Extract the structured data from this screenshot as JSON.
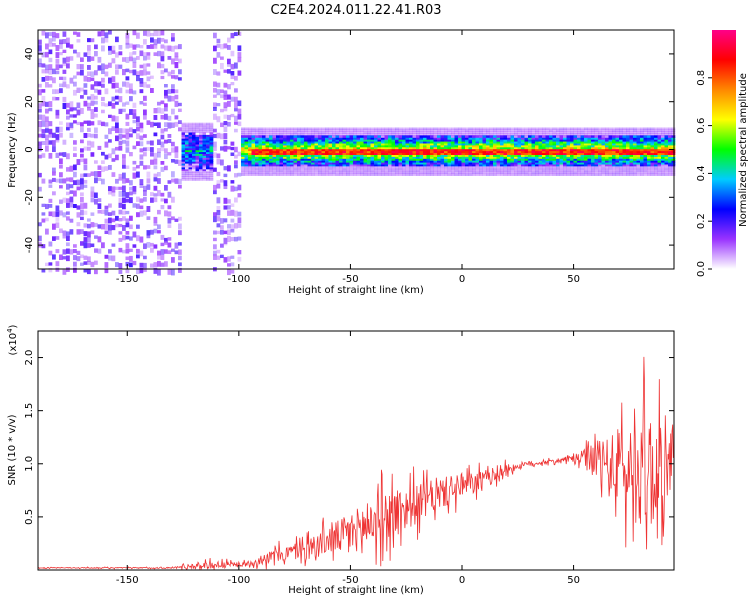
{
  "figure": {
    "title": "C2E4.2024.011.22.41.R03"
  },
  "chart_data": [
    {
      "type": "heatmap",
      "title": "C2E4.2024.011.22.41.R03",
      "xlabel": "Height of straight line (km)",
      "ylabel": "Frequency (Hz)",
      "xlim": [
        -190,
        95
      ],
      "ylim": [
        -50,
        50
      ],
      "x_ticks": [
        "-150",
        "-100",
        "-50",
        "0",
        "50"
      ],
      "x_tick_values": [
        -150,
        -100,
        -50,
        0,
        50
      ],
      "y_ticks": [
        "-40",
        "-20",
        "0",
        "20",
        "40"
      ],
      "y_tick_values": [
        -40,
        -20,
        0,
        20,
        40
      ],
      "colorbar": {
        "label": "Normalized spectral amplitude",
        "range": [
          0,
          1
        ],
        "ticks": [
          "0.0",
          "0.2",
          "0.4",
          "0.6",
          "0.8"
        ],
        "tick_values": [
          0.0,
          0.2,
          0.4,
          0.6,
          0.8
        ],
        "colormap": [
          "#ffffff",
          "#9933ff",
          "#0000ff",
          "#00ccff",
          "#00ff00",
          "#ffff00",
          "#ff8800",
          "#ff0000",
          "#ff0088"
        ]
      },
      "regions": [
        {
          "x_range": [
            -190,
            -127
          ],
          "description_level": 0.15,
          "freq_range": [
            -50,
            50
          ]
        },
        {
          "x_range": [
            -127,
            -113
          ],
          "description_level": 0.35,
          "freq_range": [
            -8,
            8
          ]
        },
        {
          "x_range": [
            -113,
            -100
          ],
          "description_level": 0.15,
          "freq_range": [
            -50,
            50
          ]
        },
        {
          "x_range": [
            -100,
            95
          ],
          "description_level": 0.7,
          "freq_range": [
            -6,
            6
          ]
        }
      ],
      "grid": false
    },
    {
      "type": "line",
      "xlabel": "Height of straight line (km)",
      "ylabel": "SNR (10 * v/v)",
      "y_multiplier": "(x10",
      "y_multiplier_exp": "4",
      "y_multiplier_close": ")",
      "xlim": [
        -190,
        95
      ],
      "ylim": [
        0,
        2.25
      ],
      "x_ticks": [
        "-150",
        "-100",
        "-50",
        "0",
        "50"
      ],
      "x_tick_values": [
        -150,
        -100,
        -50,
        0,
        50
      ],
      "y_ticks": [
        "0.5",
        "1.0",
        "1.5",
        "2.0"
      ],
      "y_tick_values": [
        0.5,
        1.0,
        1.5,
        2.0
      ],
      "series": [
        {
          "color": "#ee3333",
          "envelope_x": [
            -190,
            -130,
            -120,
            -110,
            -100,
            -95,
            -90,
            -80,
            -70,
            -60,
            -50,
            -40,
            -30,
            -20,
            -10,
            0,
            10,
            20,
            30,
            40,
            50,
            55,
            60,
            65,
            70,
            75,
            80,
            85,
            90,
            95
          ],
          "envelope_mean": [
            0.02,
            0.02,
            0.04,
            0.05,
            0.05,
            0.06,
            0.1,
            0.15,
            0.2,
            0.28,
            0.35,
            0.45,
            0.55,
            0.62,
            0.72,
            0.78,
            0.85,
            0.95,
            1.0,
            1.02,
            1.05,
            1.05,
            1.02,
            0.98,
            0.95,
            0.92,
            0.95,
            0.95,
            0.95,
            0.95
          ],
          "envelope_spread": [
            0.005,
            0.01,
            0.05,
            0.06,
            0.03,
            0.04,
            0.08,
            0.12,
            0.15,
            0.22,
            0.32,
            0.38,
            0.4,
            0.3,
            0.25,
            0.2,
            0.15,
            0.08,
            0.04,
            0.03,
            0.05,
            0.15,
            0.3,
            0.45,
            0.6,
            0.75,
            0.9,
            0.95,
            0.6,
            0.4
          ]
        }
      ],
      "grid": false
    }
  ]
}
